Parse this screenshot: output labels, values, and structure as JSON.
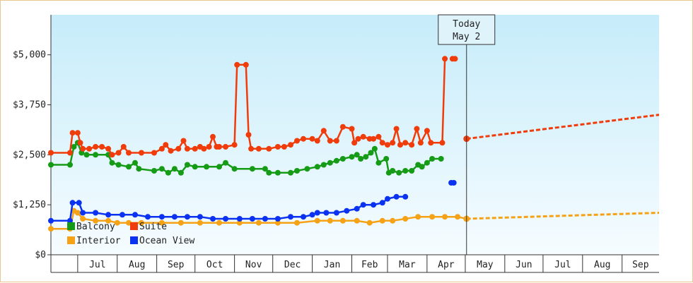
{
  "chart_data": {
    "type": "line",
    "title": "",
    "xlabel": "",
    "ylabel": "",
    "x_ticks": [
      "Jul",
      "Aug",
      "Sep",
      "Oct",
      "Nov",
      "Dec",
      "Jan",
      "Feb",
      "Mar",
      "Apr",
      "May",
      "Jun",
      "Jul",
      "Aug",
      "Sep"
    ],
    "x_range": [
      "2021-06-10",
      "2022-09-30"
    ],
    "y_ticks": [
      "$0",
      "$1,250",
      "$2,500",
      "$3,750",
      "$5,000"
    ],
    "ylim": [
      0,
      6000
    ],
    "grid": false,
    "legend_position": "bottom-left",
    "today": {
      "line1": "Today",
      "line2": "May 2",
      "date": "2022-05-02"
    },
    "series": [
      {
        "name": "Balcony",
        "color": "#169b16",
        "points": [
          [
            "2021-06-10",
            2250
          ],
          [
            "2021-06-25",
            2250
          ],
          [
            "2021-06-28",
            2700
          ],
          [
            "2021-07-01",
            2800
          ],
          [
            "2021-07-04",
            2550
          ],
          [
            "2021-07-08",
            2500
          ],
          [
            "2021-07-15",
            2500
          ],
          [
            "2021-07-25",
            2500
          ],
          [
            "2021-07-28",
            2300
          ],
          [
            "2021-08-02",
            2250
          ],
          [
            "2021-08-10",
            2200
          ],
          [
            "2021-08-15",
            2300
          ],
          [
            "2021-08-18",
            2150
          ],
          [
            "2021-08-30",
            2100
          ],
          [
            "2021-09-05",
            2150
          ],
          [
            "2021-09-10",
            2050
          ],
          [
            "2021-09-15",
            2150
          ],
          [
            "2021-09-20",
            2050
          ],
          [
            "2021-09-25",
            2250
          ],
          [
            "2021-10-01",
            2200
          ],
          [
            "2021-10-10",
            2200
          ],
          [
            "2021-10-20",
            2200
          ],
          [
            "2021-10-25",
            2300
          ],
          [
            "2021-11-01",
            2150
          ],
          [
            "2021-11-15",
            2150
          ],
          [
            "2021-11-25",
            2150
          ],
          [
            "2021-11-28",
            2050
          ],
          [
            "2021-12-05",
            2050
          ],
          [
            "2021-12-15",
            2050
          ],
          [
            "2021-12-20",
            2100
          ],
          [
            "2021-12-28",
            2150
          ],
          [
            "2022-01-05",
            2200
          ],
          [
            "2022-01-10",
            2250
          ],
          [
            "2022-01-15",
            2300
          ],
          [
            "2022-01-20",
            2350
          ],
          [
            "2022-01-25",
            2400
          ],
          [
            "2022-02-01",
            2450
          ],
          [
            "2022-02-05",
            2500
          ],
          [
            "2022-02-08",
            2400
          ],
          [
            "2022-02-12",
            2450
          ],
          [
            "2022-02-16",
            2550
          ],
          [
            "2022-02-19",
            2650
          ],
          [
            "2022-02-22",
            2300
          ],
          [
            "2022-02-28",
            2400
          ],
          [
            "2022-03-02",
            2050
          ],
          [
            "2022-03-05",
            2100
          ],
          [
            "2022-03-10",
            2050
          ],
          [
            "2022-03-15",
            2100
          ],
          [
            "2022-03-20",
            2100
          ],
          [
            "2022-03-25",
            2250
          ],
          [
            "2022-03-28",
            2200
          ],
          [
            "2022-04-01",
            2300
          ],
          [
            "2022-04-05",
            2400
          ],
          [
            "2022-04-12",
            2400
          ]
        ]
      },
      {
        "name": "Suite",
        "color": "#f03c0a",
        "points": [
          [
            "2021-06-10",
            2550
          ],
          [
            "2021-06-25",
            2550
          ],
          [
            "2021-06-27",
            3050
          ],
          [
            "2021-07-01",
            3050
          ],
          [
            "2021-07-03",
            2800
          ],
          [
            "2021-07-05",
            2650
          ],
          [
            "2021-07-10",
            2650
          ],
          [
            "2021-07-15",
            2700
          ],
          [
            "2021-07-20",
            2700
          ],
          [
            "2021-07-25",
            2650
          ],
          [
            "2021-07-28",
            2500
          ],
          [
            "2021-08-02",
            2550
          ],
          [
            "2021-08-06",
            2700
          ],
          [
            "2021-08-10",
            2550
          ],
          [
            "2021-08-20",
            2550
          ],
          [
            "2021-08-30",
            2550
          ],
          [
            "2021-09-05",
            2650
          ],
          [
            "2021-09-08",
            2750
          ],
          [
            "2021-09-12",
            2600
          ],
          [
            "2021-09-18",
            2650
          ],
          [
            "2021-09-22",
            2850
          ],
          [
            "2021-09-25",
            2650
          ],
          [
            "2021-10-01",
            2650
          ],
          [
            "2021-10-05",
            2700
          ],
          [
            "2021-10-08",
            2650
          ],
          [
            "2021-10-12",
            2700
          ],
          [
            "2021-10-15",
            2950
          ],
          [
            "2021-10-18",
            2700
          ],
          [
            "2021-10-20",
            2700
          ],
          [
            "2021-10-25",
            2700
          ],
          [
            "2021-11-01",
            2750
          ],
          [
            "2021-11-03",
            4750
          ],
          [
            "2021-11-10",
            4750
          ],
          [
            "2021-11-12",
            3000
          ],
          [
            "2021-11-14",
            2650
          ],
          [
            "2021-11-20",
            2650
          ],
          [
            "2021-11-28",
            2650
          ],
          [
            "2021-12-05",
            2700
          ],
          [
            "2021-12-10",
            2700
          ],
          [
            "2021-12-15",
            2750
          ],
          [
            "2021-12-20",
            2850
          ],
          [
            "2021-12-25",
            2900
          ],
          [
            "2022-01-01",
            2900
          ],
          [
            "2022-01-05",
            2850
          ],
          [
            "2022-01-10",
            3100
          ],
          [
            "2022-01-15",
            2850
          ],
          [
            "2022-01-20",
            2850
          ],
          [
            "2022-01-25",
            3200
          ],
          [
            "2022-02-01",
            3150
          ],
          [
            "2022-02-03",
            2800
          ],
          [
            "2022-02-06",
            2900
          ],
          [
            "2022-02-10",
            2950
          ],
          [
            "2022-02-15",
            2900
          ],
          [
            "2022-02-18",
            2900
          ],
          [
            "2022-02-22",
            2950
          ],
          [
            "2022-02-25",
            2800
          ],
          [
            "2022-03-01",
            2750
          ],
          [
            "2022-03-05",
            2800
          ],
          [
            "2022-03-08",
            3150
          ],
          [
            "2022-03-11",
            2750
          ],
          [
            "2022-03-15",
            2800
          ],
          [
            "2022-03-20",
            2750
          ],
          [
            "2022-03-24",
            3150
          ],
          [
            "2022-03-27",
            2800
          ],
          [
            "2022-04-01",
            3100
          ],
          [
            "2022-04-04",
            2800
          ],
          [
            "2022-04-13",
            2800
          ],
          [
            "2022-04-15",
            4900
          ],
          [
            "2022-04-20",
            null
          ],
          [
            "2022-04-21",
            4900
          ],
          [
            "2022-04-23",
            4900
          ]
        ],
        "projection": [
          [
            "2022-05-02",
            2900
          ],
          [
            "2022-09-30",
            3500
          ]
        ]
      },
      {
        "name": "Interior",
        "color": "#f5a216",
        "points": [
          [
            "2021-06-10",
            650
          ],
          [
            "2021-06-25",
            650
          ],
          [
            "2021-06-28",
            1100
          ],
          [
            "2021-07-01",
            1050
          ],
          [
            "2021-07-05",
            900
          ],
          [
            "2021-07-15",
            850
          ],
          [
            "2021-07-25",
            850
          ],
          [
            "2021-08-01",
            800
          ],
          [
            "2021-08-10",
            800
          ],
          [
            "2021-08-20",
            800
          ],
          [
            "2021-09-05",
            800
          ],
          [
            "2021-09-20",
            800
          ],
          [
            "2021-10-05",
            800
          ],
          [
            "2021-10-20",
            800
          ],
          [
            "2021-11-05",
            800
          ],
          [
            "2021-11-20",
            800
          ],
          [
            "2021-12-05",
            800
          ],
          [
            "2021-12-20",
            800
          ],
          [
            "2022-01-05",
            850
          ],
          [
            "2022-01-15",
            850
          ],
          [
            "2022-01-25",
            850
          ],
          [
            "2022-02-05",
            850
          ],
          [
            "2022-02-15",
            800
          ],
          [
            "2022-02-25",
            850
          ],
          [
            "2022-03-05",
            850
          ],
          [
            "2022-03-15",
            900
          ],
          [
            "2022-03-25",
            950
          ],
          [
            "2022-04-05",
            950
          ],
          [
            "2022-04-15",
            950
          ],
          [
            "2022-04-25",
            950
          ],
          [
            "2022-05-02",
            900
          ]
        ],
        "projection": [
          [
            "2022-05-02",
            900
          ],
          [
            "2022-09-30",
            1050
          ]
        ]
      },
      {
        "name": "Ocean View",
        "color": "#0a32f0",
        "points": [
          [
            "2021-06-10",
            850
          ],
          [
            "2021-06-25",
            850
          ],
          [
            "2021-06-27",
            1300
          ],
          [
            "2021-07-02",
            1300
          ],
          [
            "2021-07-05",
            1050
          ],
          [
            "2021-07-15",
            1050
          ],
          [
            "2021-07-25",
            1000
          ],
          [
            "2021-08-05",
            1000
          ],
          [
            "2021-08-15",
            1000
          ],
          [
            "2021-08-25",
            950
          ],
          [
            "2021-09-05",
            950
          ],
          [
            "2021-09-15",
            950
          ],
          [
            "2021-09-25",
            950
          ],
          [
            "2021-10-05",
            950
          ],
          [
            "2021-10-15",
            900
          ],
          [
            "2021-10-25",
            900
          ],
          [
            "2021-11-05",
            900
          ],
          [
            "2021-11-15",
            900
          ],
          [
            "2021-11-25",
            900
          ],
          [
            "2021-12-05",
            900
          ],
          [
            "2021-12-15",
            950
          ],
          [
            "2021-12-25",
            950
          ],
          [
            "2022-01-01",
            1000
          ],
          [
            "2022-01-05",
            1050
          ],
          [
            "2022-01-12",
            1050
          ],
          [
            "2022-01-20",
            1050
          ],
          [
            "2022-01-28",
            1100
          ],
          [
            "2022-02-05",
            1150
          ],
          [
            "2022-02-10",
            1250
          ],
          [
            "2022-02-18",
            1250
          ],
          [
            "2022-02-25",
            1300
          ],
          [
            "2022-03-01",
            1400
          ],
          [
            "2022-03-08",
            1450
          ],
          [
            "2022-03-15",
            1450
          ],
          [
            "2022-03-20",
            null
          ],
          [
            "2022-04-20",
            1800
          ],
          [
            "2022-04-22",
            1800
          ]
        ]
      }
    ]
  }
}
